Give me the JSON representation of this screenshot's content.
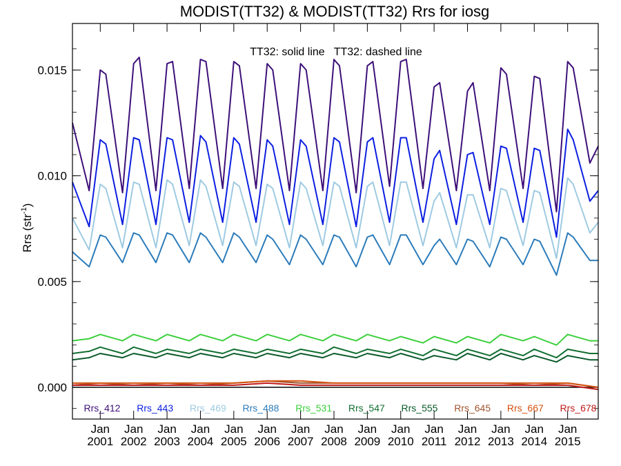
{
  "chart_data": {
    "type": "line",
    "title": "MODIST(TT32) & MODIST(TT32)  Rrs for iosg",
    "annotation": "TT32: solid line   TT32: dashed line",
    "ylabel": "Rrs (str",
    "ylabel_sup": "-1",
    "ylabel_suffix": ")",
    "ylim": [
      -0.0015,
      0.0172
    ],
    "xlim": [
      "2000-03",
      "2015-12"
    ],
    "yticks": [
      {
        "value": 0.0,
        "label": "0.000"
      },
      {
        "value": 0.005,
        "label": "0.005"
      },
      {
        "value": 0.01,
        "label": "0.010"
      },
      {
        "value": 0.015,
        "label": "0.015"
      }
    ],
    "xticks": [
      {
        "date": "2001-01",
        "month": "Jan",
        "year": "2001"
      },
      {
        "date": "2002-01",
        "month": "Jan",
        "year": "2002"
      },
      {
        "date": "2003-01",
        "month": "Jan",
        "year": "2003"
      },
      {
        "date": "2004-01",
        "month": "Jan",
        "year": "2004"
      },
      {
        "date": "2005-01",
        "month": "Jan",
        "year": "2005"
      },
      {
        "date": "2006-01",
        "month": "Jan",
        "year": "2006"
      },
      {
        "date": "2007-01",
        "month": "Jan",
        "year": "2007"
      },
      {
        "date": "2008-01",
        "month": "Jan",
        "year": "2008"
      },
      {
        "date": "2009-01",
        "month": "Jan",
        "year": "2009"
      },
      {
        "date": "2010-01",
        "month": "Jan",
        "year": "2010"
      },
      {
        "date": "2011-01",
        "month": "Jan",
        "year": "2011"
      },
      {
        "date": "2012-01",
        "month": "Jan",
        "year": "2012"
      },
      {
        "date": "2013-01",
        "month": "Jan",
        "year": "2013"
      },
      {
        "date": "2014-01",
        "month": "Jan",
        "year": "2014"
      },
      {
        "date": "2015-01",
        "month": "Jan",
        "year": "2015"
      }
    ],
    "zero_line": true,
    "legend_position": "bottom",
    "series": [
      {
        "name": "Rrs_412",
        "color": "#3d0f78",
        "x": [
          "2000-03",
          "2000-09",
          "2001-01",
          "2001-03",
          "2001-09",
          "2002-01",
          "2002-03",
          "2002-09",
          "2003-01",
          "2003-03",
          "2003-09",
          "2004-01",
          "2004-03",
          "2004-09",
          "2005-01",
          "2005-03",
          "2005-09",
          "2006-01",
          "2006-03",
          "2006-09",
          "2007-01",
          "2007-03",
          "2007-09",
          "2008-01",
          "2008-03",
          "2008-09",
          "2009-01",
          "2009-03",
          "2009-09",
          "2010-01",
          "2010-03",
          "2010-09",
          "2011-01",
          "2011-03",
          "2011-09",
          "2012-01",
          "2012-03",
          "2012-09",
          "2013-01",
          "2013-03",
          "2013-09",
          "2014-01",
          "2014-03",
          "2014-09",
          "2015-01",
          "2015-03",
          "2015-09",
          "2015-12"
        ],
        "y": [
          0.0125,
          0.0093,
          0.015,
          0.0148,
          0.0092,
          0.0153,
          0.0156,
          0.0093,
          0.0153,
          0.0154,
          0.0094,
          0.0155,
          0.0154,
          0.0094,
          0.0154,
          0.0152,
          0.0094,
          0.0153,
          0.015,
          0.0093,
          0.0153,
          0.015,
          0.0093,
          0.0155,
          0.0152,
          0.0092,
          0.0152,
          0.0154,
          0.0095,
          0.0154,
          0.0155,
          0.0094,
          0.0142,
          0.0144,
          0.0093,
          0.014,
          0.0144,
          0.0093,
          0.0151,
          0.0148,
          0.0094,
          0.0147,
          0.0146,
          0.0083,
          0.0154,
          0.0151,
          0.0106,
          0.0114
        ]
      },
      {
        "name": "Rrs_443",
        "color": "#0b1ee0",
        "x": [
          "2000-03",
          "2000-09",
          "2001-01",
          "2001-03",
          "2001-09",
          "2002-01",
          "2002-03",
          "2002-09",
          "2003-01",
          "2003-03",
          "2003-09",
          "2004-01",
          "2004-03",
          "2004-09",
          "2005-01",
          "2005-03",
          "2005-09",
          "2006-01",
          "2006-03",
          "2006-09",
          "2007-01",
          "2007-03",
          "2007-09",
          "2008-01",
          "2008-03",
          "2008-09",
          "2009-01",
          "2009-03",
          "2009-09",
          "2010-01",
          "2010-03",
          "2010-09",
          "2011-01",
          "2011-03",
          "2011-09",
          "2012-01",
          "2012-03",
          "2012-09",
          "2013-01",
          "2013-03",
          "2013-09",
          "2014-01",
          "2014-03",
          "2014-09",
          "2015-01",
          "2015-03",
          "2015-09",
          "2015-12"
        ],
        "y": [
          0.0097,
          0.0076,
          0.0117,
          0.0115,
          0.0077,
          0.0118,
          0.0117,
          0.0077,
          0.0118,
          0.0117,
          0.0078,
          0.0119,
          0.0116,
          0.0078,
          0.0118,
          0.0115,
          0.0078,
          0.0117,
          0.0114,
          0.0077,
          0.0117,
          0.0114,
          0.0077,
          0.0118,
          0.0116,
          0.0076,
          0.0116,
          0.0118,
          0.0078,
          0.0118,
          0.0118,
          0.0078,
          0.0108,
          0.0112,
          0.0077,
          0.011,
          0.0111,
          0.0077,
          0.0114,
          0.0113,
          0.0078,
          0.0113,
          0.0112,
          0.0071,
          0.0122,
          0.0117,
          0.0088,
          0.0093
        ]
      },
      {
        "name": "Rrs_469",
        "color": "#9ecae1",
        "x": [
          "2000-03",
          "2000-09",
          "2001-01",
          "2001-03",
          "2001-09",
          "2002-01",
          "2002-03",
          "2002-09",
          "2003-01",
          "2003-03",
          "2003-09",
          "2004-01",
          "2004-03",
          "2004-09",
          "2005-01",
          "2005-03",
          "2005-09",
          "2006-01",
          "2006-03",
          "2006-09",
          "2007-01",
          "2007-03",
          "2007-09",
          "2008-01",
          "2008-03",
          "2008-09",
          "2009-01",
          "2009-03",
          "2009-09",
          "2010-01",
          "2010-03",
          "2010-09",
          "2011-01",
          "2011-03",
          "2011-09",
          "2012-01",
          "2012-03",
          "2012-09",
          "2013-01",
          "2013-03",
          "2013-09",
          "2014-01",
          "2014-03",
          "2014-09",
          "2015-01",
          "2015-03",
          "2015-09",
          "2015-12"
        ],
        "y": [
          0.008,
          0.0065,
          0.0096,
          0.0094,
          0.0066,
          0.0097,
          0.0096,
          0.0066,
          0.0098,
          0.0096,
          0.0067,
          0.0098,
          0.0095,
          0.0067,
          0.0097,
          0.0095,
          0.0067,
          0.0096,
          0.0094,
          0.0066,
          0.0097,
          0.0094,
          0.0067,
          0.0097,
          0.0095,
          0.0066,
          0.0095,
          0.0097,
          0.0067,
          0.0097,
          0.0097,
          0.0067,
          0.0088,
          0.0092,
          0.0066,
          0.0091,
          0.0091,
          0.0066,
          0.0094,
          0.0093,
          0.0067,
          0.0093,
          0.0092,
          0.0061,
          0.0099,
          0.0096,
          0.0073,
          0.0078
        ]
      },
      {
        "name": "Rrs_488",
        "color": "#2b7bba",
        "x": [
          "2000-03",
          "2000-09",
          "2001-01",
          "2001-03",
          "2001-09",
          "2002-01",
          "2002-03",
          "2002-09",
          "2003-01",
          "2003-03",
          "2003-09",
          "2004-01",
          "2004-03",
          "2004-09",
          "2005-01",
          "2005-03",
          "2005-09",
          "2006-01",
          "2006-03",
          "2006-09",
          "2007-01",
          "2007-03",
          "2007-09",
          "2008-01",
          "2008-03",
          "2008-09",
          "2009-01",
          "2009-03",
          "2009-09",
          "2010-01",
          "2010-03",
          "2010-09",
          "2011-01",
          "2011-03",
          "2011-09",
          "2012-01",
          "2012-03",
          "2012-09",
          "2013-01",
          "2013-03",
          "2013-09",
          "2014-01",
          "2014-03",
          "2014-09",
          "2015-01",
          "2015-03",
          "2015-09",
          "2015-12"
        ],
        "y": [
          0.0064,
          0.0057,
          0.0072,
          0.0071,
          0.0059,
          0.0073,
          0.0072,
          0.0059,
          0.0073,
          0.0072,
          0.0059,
          0.0073,
          0.0071,
          0.0059,
          0.0073,
          0.0071,
          0.0059,
          0.0072,
          0.007,
          0.0058,
          0.0072,
          0.007,
          0.0058,
          0.0072,
          0.0071,
          0.0057,
          0.0071,
          0.0072,
          0.0058,
          0.0072,
          0.0072,
          0.0058,
          0.0067,
          0.007,
          0.0058,
          0.007,
          0.0069,
          0.0057,
          0.0071,
          0.007,
          0.0058,
          0.007,
          0.0069,
          0.0053,
          0.0073,
          0.0071,
          0.006,
          0.006
        ]
      },
      {
        "name": "Rrs_531",
        "color": "#3ccf3c",
        "x": [
          "2000-03",
          "2000-09",
          "2001-01",
          "2001-09",
          "2002-01",
          "2002-09",
          "2003-01",
          "2003-09",
          "2004-01",
          "2004-09",
          "2005-01",
          "2005-09",
          "2006-01",
          "2006-09",
          "2007-01",
          "2007-09",
          "2008-01",
          "2008-09",
          "2009-01",
          "2009-09",
          "2010-01",
          "2010-09",
          "2011-01",
          "2011-09",
          "2012-01",
          "2012-09",
          "2013-01",
          "2013-09",
          "2014-01",
          "2014-09",
          "2015-01",
          "2015-09",
          "2015-12"
        ],
        "y": [
          0.0022,
          0.0023,
          0.0025,
          0.0022,
          0.0025,
          0.0022,
          0.0025,
          0.0022,
          0.0025,
          0.0022,
          0.0025,
          0.0022,
          0.0025,
          0.0022,
          0.0025,
          0.0022,
          0.0025,
          0.0022,
          0.0025,
          0.0022,
          0.0024,
          0.0021,
          0.0024,
          0.0021,
          0.0024,
          0.0021,
          0.0025,
          0.0022,
          0.0024,
          0.002,
          0.0025,
          0.0022,
          0.0022
        ]
      },
      {
        "name": "Rrs_547",
        "color": "#0f6e2f",
        "x": [
          "2000-03",
          "2000-09",
          "2001-01",
          "2001-09",
          "2002-01",
          "2002-09",
          "2003-01",
          "2003-09",
          "2004-01",
          "2004-09",
          "2005-01",
          "2005-09",
          "2006-01",
          "2006-09",
          "2007-01",
          "2007-09",
          "2008-01",
          "2008-09",
          "2009-01",
          "2009-09",
          "2010-01",
          "2010-09",
          "2011-01",
          "2011-09",
          "2012-01",
          "2012-09",
          "2013-01",
          "2013-09",
          "2014-01",
          "2014-09",
          "2015-01",
          "2015-09",
          "2015-12"
        ],
        "y": [
          0.0016,
          0.0017,
          0.0019,
          0.0016,
          0.0019,
          0.0016,
          0.0018,
          0.0016,
          0.0018,
          0.0016,
          0.0018,
          0.0016,
          0.0018,
          0.0016,
          0.0018,
          0.0016,
          0.0019,
          0.0016,
          0.0018,
          0.0016,
          0.0018,
          0.0015,
          0.0018,
          0.0015,
          0.0018,
          0.0015,
          0.0018,
          0.0015,
          0.0018,
          0.0014,
          0.0018,
          0.0016,
          0.0016
        ]
      },
      {
        "name": "Rrs_555",
        "color": "#0a5a2a",
        "x": [
          "2000-03",
          "2000-09",
          "2001-01",
          "2001-09",
          "2002-01",
          "2002-09",
          "2003-01",
          "2003-09",
          "2004-01",
          "2004-09",
          "2005-01",
          "2005-09",
          "2006-01",
          "2006-09",
          "2007-01",
          "2007-09",
          "2008-01",
          "2008-09",
          "2009-01",
          "2009-09",
          "2010-01",
          "2010-09",
          "2011-01",
          "2011-09",
          "2012-01",
          "2012-09",
          "2013-01",
          "2013-09",
          "2014-01",
          "2014-09",
          "2015-01",
          "2015-09",
          "2015-12"
        ],
        "y": [
          0.0013,
          0.0014,
          0.0016,
          0.0014,
          0.0016,
          0.0014,
          0.0016,
          0.0014,
          0.0016,
          0.0014,
          0.0016,
          0.0014,
          0.0016,
          0.0014,
          0.0016,
          0.0014,
          0.0016,
          0.0014,
          0.0016,
          0.0014,
          0.0016,
          0.0013,
          0.0015,
          0.0013,
          0.0016,
          0.0013,
          0.0016,
          0.0013,
          0.0015,
          0.0012,
          0.0015,
          0.0013,
          0.0013
        ]
      },
      {
        "name": "Rrs_645",
        "color": "#a0522d",
        "x": [
          "2000-03",
          "2001-01",
          "2002-01",
          "2003-01",
          "2004-01",
          "2005-01",
          "2006-01",
          "2007-01",
          "2008-01",
          "2009-01",
          "2010-01",
          "2011-01",
          "2012-01",
          "2013-01",
          "2014-01",
          "2015-01",
          "2015-12"
        ],
        "y": [
          0.0001,
          0.0002,
          0.0001,
          0.0002,
          0.0001,
          0.0002,
          0.0003,
          0.0002,
          0.0002,
          0.0002,
          0.0002,
          0.0002,
          0.0002,
          0.0002,
          0.0001,
          0.0002,
          0.0
        ]
      },
      {
        "name": "Rrs_667",
        "color": "#d4520f",
        "x": [
          "2000-03",
          "2001-01",
          "2002-01",
          "2003-01",
          "2004-01",
          "2005-01",
          "2006-01",
          "2007-01",
          "2008-01",
          "2009-01",
          "2010-01",
          "2011-01",
          "2012-01",
          "2013-01",
          "2014-01",
          "2015-01",
          "2015-12"
        ],
        "y": [
          0.0002,
          0.0002,
          0.0002,
          0.0002,
          0.0002,
          0.0002,
          0.0003,
          0.0003,
          0.0002,
          0.0002,
          0.0002,
          0.0002,
          0.0002,
          0.0002,
          0.0002,
          0.0002,
          0.0
        ]
      },
      {
        "name": "Rrs_678",
        "color": "#c01a1a",
        "x": [
          "2000-03",
          "2001-01",
          "2002-01",
          "2003-01",
          "2004-01",
          "2005-01",
          "2006-01",
          "2007-01",
          "2008-01",
          "2009-01",
          "2010-01",
          "2011-01",
          "2012-01",
          "2013-01",
          "2014-01",
          "2015-01",
          "2015-12"
        ],
        "y": [
          0.0001,
          0.0001,
          0.0001,
          0.0001,
          0.0001,
          0.0001,
          0.0002,
          0.0001,
          0.0001,
          0.0001,
          0.0001,
          0.0001,
          0.0001,
          0.0001,
          0.0001,
          0.0001,
          -0.0001
        ]
      }
    ]
  }
}
